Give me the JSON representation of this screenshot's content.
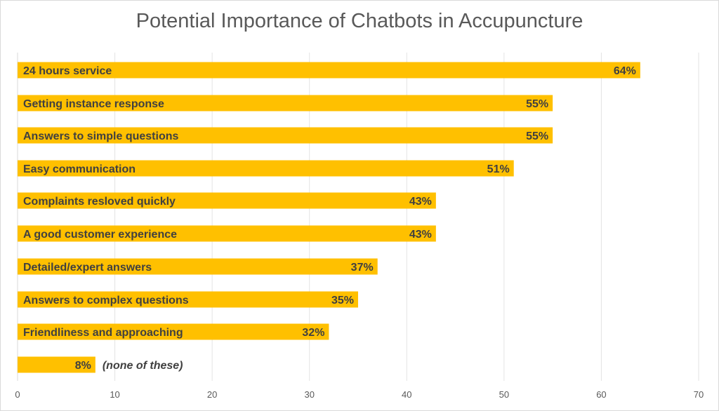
{
  "chart_data": {
    "type": "bar",
    "orientation": "horizontal",
    "title": "Potential Importance of Chatbots in Accupuncture",
    "xlabel": "",
    "ylabel": "",
    "xlim": [
      0,
      70
    ],
    "x_ticks": [
      "0",
      "10",
      "20",
      "30",
      "40",
      "50",
      "60",
      "70"
    ],
    "grid": true,
    "legend": "none",
    "bar_color": "#ffc000",
    "categories": [
      "24 hours service",
      "Getting instance response",
      "Answers to simple questions",
      "Easy communication",
      "Complaints resloved quickly",
      "A good customer experience",
      "Detailed/expert answers",
      "Answers to complex questions",
      "Friendliness and approaching",
      ""
    ],
    "values": [
      64,
      55,
      55,
      51,
      43,
      43,
      37,
      35,
      32,
      8
    ],
    "data_labels": [
      "64%",
      "55%",
      "55%",
      "51%",
      "43%",
      "43%",
      "37%",
      "35%",
      "32%",
      "8%"
    ],
    "annotation": "(none of these)"
  }
}
